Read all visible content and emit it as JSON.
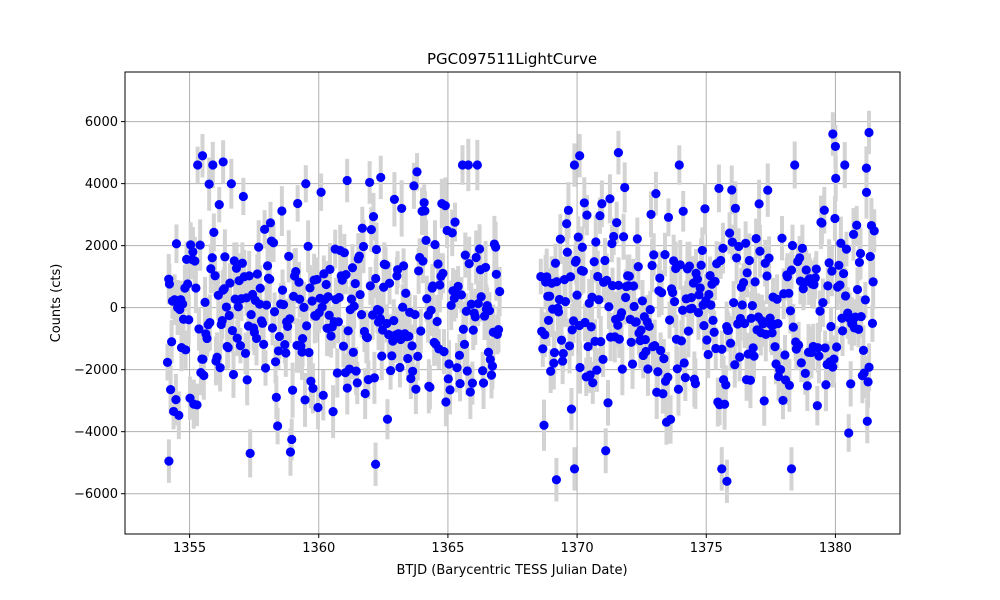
{
  "chart_data": {
    "type": "scatter",
    "title": "PGC097511LightCurve",
    "xlabel": "BTJD (Barycentric TESS Julian Date)",
    "ylabel": "Counts (cts)",
    "xlim": [
      1352.5,
      1382.5
    ],
    "ylim": [
      -7300,
      7600
    ],
    "xticks": [
      1355,
      1360,
      1365,
      1370,
      1375,
      1380
    ],
    "yticks": [
      -6000,
      -4000,
      -2000,
      0,
      2000,
      4000,
      6000
    ],
    "xtick_labels": [
      "1355",
      "1360",
      "1365",
      "1370",
      "1375",
      "1380"
    ],
    "ytick_labels": [
      "−6000",
      "−4000",
      "−2000",
      "0",
      "2000",
      "4000",
      "6000"
    ],
    "grid": true,
    "colors": {
      "points": "#0000ff",
      "error_bars": "#d3d3d3",
      "grid": "#b0b0b0"
    },
    "series": [
      {
        "segments": [
          {
            "x_start": 1354.15,
            "x_end": 1367.0,
            "n": 330,
            "seed": 11
          },
          {
            "x_start": 1368.6,
            "x_end": 1381.5,
            "n": 340,
            "seed": 37
          }
        ],
        "typical_y_error": 700,
        "highlight_points": [
          {
            "x": 1354.2,
            "y": -4950
          },
          {
            "x": 1355.5,
            "y": 4900
          },
          {
            "x": 1356.3,
            "y": 4700
          },
          {
            "x": 1361.1,
            "y": 4100
          },
          {
            "x": 1362.4,
            "y": 4200
          },
          {
            "x": 1362.2,
            "y": -5050
          },
          {
            "x": 1369.2,
            "y": -5550
          },
          {
            "x": 1369.9,
            "y": -5200
          },
          {
            "x": 1370.1,
            "y": 4900
          },
          {
            "x": 1371.6,
            "y": 5000
          },
          {
            "x": 1375.6,
            "y": -5200
          },
          {
            "x": 1375.8,
            "y": -5600
          },
          {
            "x": 1378.3,
            "y": -5200
          },
          {
            "x": 1379.9,
            "y": 5600
          },
          {
            "x": 1380.0,
            "y": 5200
          },
          {
            "x": 1381.3,
            "y": 5650
          },
          {
            "x": 1381.2,
            "y": 4500
          }
        ]
      }
    ]
  }
}
